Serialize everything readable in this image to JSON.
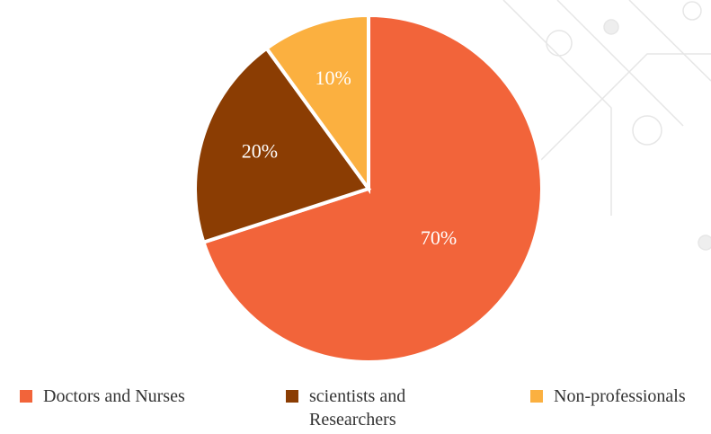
{
  "chart_data": {
    "type": "pie",
    "categories": [
      "Doctors and Nurses",
      "scientists and Researchers",
      "Non-professionals"
    ],
    "values": [
      70,
      20,
      10
    ],
    "value_labels": [
      "70%",
      "20%",
      "10%"
    ],
    "colors": [
      "#f2643a",
      "#8b3d03",
      "#fbb040"
    ]
  }
}
